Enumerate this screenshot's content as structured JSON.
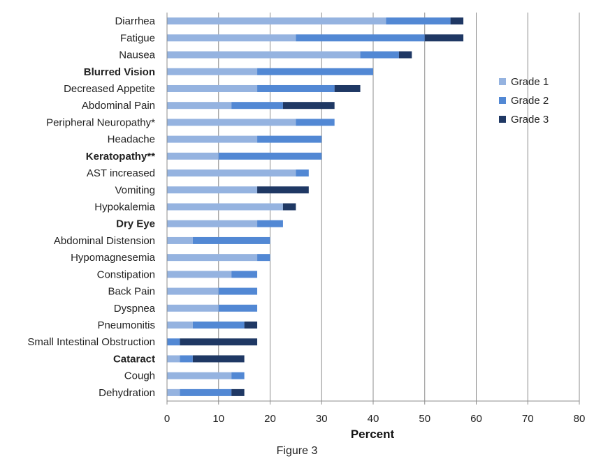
{
  "chart_data": {
    "type": "bar",
    "orientation": "horizontal",
    "stacked": true,
    "xlabel": "Percent",
    "xlim": [
      0,
      80
    ],
    "xticks": [
      0,
      10,
      20,
      30,
      40,
      50,
      60,
      70,
      80
    ],
    "grid": "vertical",
    "legend_position": "right",
    "categories": [
      "Diarrhea",
      "Fatigue",
      "Nausea",
      "Blurred Vision",
      "Decreased Appetite",
      "Abdominal Pain",
      "Peripheral Neuropathy*",
      "Headache",
      "Keratopathy**",
      "AST increased",
      "Vomiting",
      "Hypokalemia",
      "Dry Eye",
      "Abdominal Distension",
      "Hypomagnesemia",
      "Constipation",
      "Back Pain",
      "Dyspnea",
      "Pneumonitis",
      "Small Intestinal Obstruction",
      "Cataract",
      "Cough",
      "Dehydration"
    ],
    "bold_categories": [
      "Blurred Vision",
      "Keratopathy**",
      "Dry Eye",
      "Cataract"
    ],
    "series": [
      {
        "name": "Grade 1",
        "color": "#95b3e0",
        "values": [
          42.5,
          25,
          37.5,
          17.5,
          17.5,
          12.5,
          25,
          17.5,
          10,
          25,
          17.5,
          22.5,
          17.5,
          5,
          17.5,
          12.5,
          10,
          10,
          5,
          0,
          2.5,
          12.5,
          2.5
        ]
      },
      {
        "name": "Grade 2",
        "color": "#5288d4",
        "values": [
          12.5,
          25,
          7.5,
          22.5,
          15,
          10,
          7.5,
          12.5,
          20,
          2.5,
          0,
          0,
          5,
          15,
          2.5,
          5,
          7.5,
          7.5,
          10,
          2.5,
          2.5,
          2.5,
          10
        ]
      },
      {
        "name": "Grade 3",
        "color": "#1f3864",
        "values": [
          2.5,
          7.5,
          2.5,
          0,
          5,
          10,
          0,
          0,
          0,
          0,
          10,
          2.5,
          0,
          0,
          0,
          0,
          0,
          0,
          2.5,
          15,
          10,
          0,
          2.5
        ]
      }
    ]
  },
  "caption": "Figure 3"
}
